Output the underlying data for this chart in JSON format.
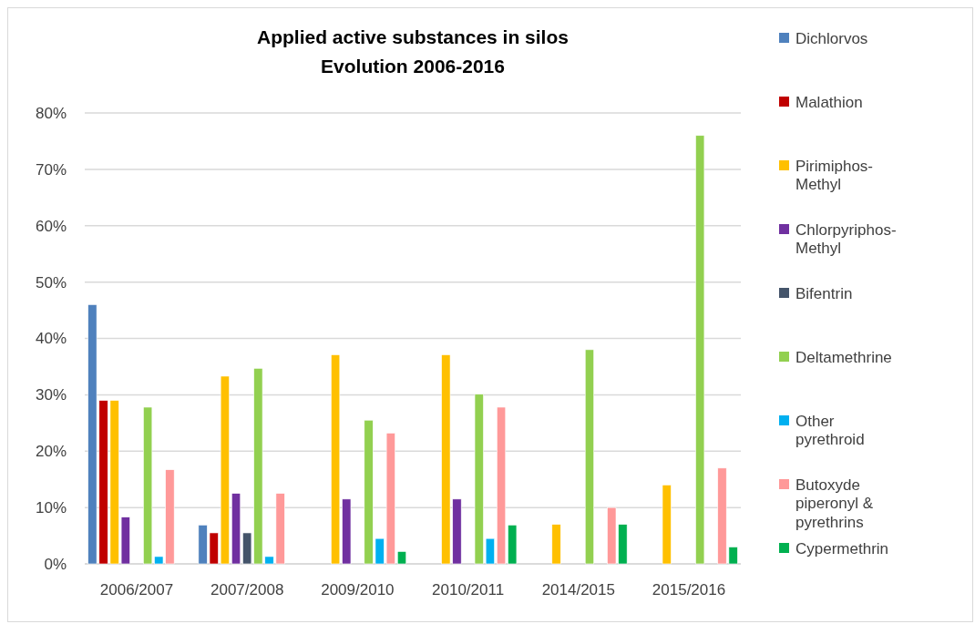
{
  "chart_data": {
    "type": "bar",
    "title": "Applied active substances in silos\nEvolution 2006-2016",
    "categories": [
      "2006/2007",
      "2007/2008",
      "2009/2010",
      "2010/2011",
      "2014/2015",
      "2015/2016"
    ],
    "series": [
      {
        "name": "Dichlorvos",
        "color": "#4f81bd",
        "values": [
          46,
          6.9,
          null,
          null,
          null,
          null
        ]
      },
      {
        "name": "Malathion",
        "color": "#c00000",
        "values": [
          29,
          5.5,
          null,
          null,
          null,
          null
        ]
      },
      {
        "name": "Pirimiphos-Methyl",
        "color": "#ffc000",
        "values": [
          29,
          33.3,
          37.1,
          37.1,
          7,
          14
        ]
      },
      {
        "name": "Chlorpyriphos-Methyl",
        "color": "#7030a0",
        "values": [
          8.3,
          12.5,
          11.5,
          11.5,
          null,
          null
        ]
      },
      {
        "name": "Bifentrin",
        "color": "#44546a",
        "values": [
          null,
          5.5,
          null,
          null,
          null,
          null
        ]
      },
      {
        "name": "Deltamethrine",
        "color": "#92d050",
        "values": [
          27.8,
          34.7,
          25.5,
          30.1,
          38,
          76
        ]
      },
      {
        "name": "Other pyrethroid",
        "color": "#00b0f0",
        "values": [
          1.3,
          1.3,
          4.5,
          4.5,
          null,
          null
        ]
      },
      {
        "name": "Butoxyde piperonyl & pyrethrins",
        "color": "#ff9999",
        "values": [
          16.7,
          12.5,
          23.2,
          27.8,
          10,
          17
        ]
      },
      {
        "name": "Cypermethrin",
        "color": "#00b050",
        "values": [
          null,
          null,
          2.2,
          6.9,
          7,
          3
        ]
      }
    ],
    "ylim": [
      0,
      80
    ],
    "yticks": [
      {
        "value": 0,
        "label": "0%"
      },
      {
        "value": 10,
        "label": "10%"
      },
      {
        "value": 20,
        "label": "20%"
      },
      {
        "value": 30,
        "label": "30%"
      },
      {
        "value": 40,
        "label": "40%"
      },
      {
        "value": 50,
        "label": "50%"
      },
      {
        "value": 60,
        "label": "60%"
      },
      {
        "value": 70,
        "label": "70%"
      },
      {
        "value": 80,
        "label": "80%"
      }
    ],
    "grid": "y",
    "legend": "right"
  }
}
